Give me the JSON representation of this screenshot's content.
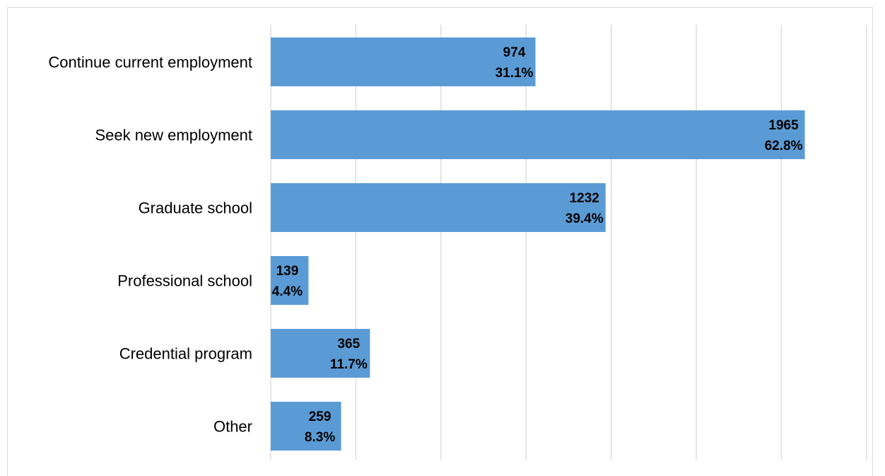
{
  "chart_data": {
    "type": "bar",
    "orientation": "horizontal",
    "title": "",
    "xlabel": "",
    "ylabel": "",
    "categories": [
      "Continue current employment",
      "Seek new employment",
      "Graduate school",
      "Professional school",
      "Credential program",
      "Other"
    ],
    "values": [
      974,
      1965,
      1232,
      139,
      365,
      259
    ],
    "percent_labels": [
      "31.1%",
      "62.8%",
      "39.4%",
      "4.4%",
      "11.7%",
      "8.3%"
    ],
    "xlim": [
      0,
      2200
    ],
    "grid_step": 313,
    "grid": true,
    "legend": "none",
    "bar_color": "#5B9BD5",
    "grid_color": "#d9d9d9"
  }
}
